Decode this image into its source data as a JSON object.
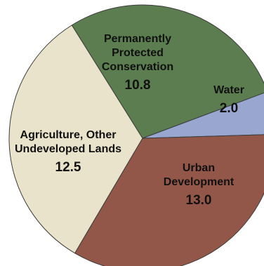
{
  "chart_data": {
    "type": "pie",
    "title": "",
    "slices": [
      {
        "label": [
          "Permanently",
          "Protected",
          "Conservation"
        ],
        "value": 10.8,
        "value_text": "10.8",
        "color": "#5c7d4f"
      },
      {
        "label": [
          "Water"
        ],
        "value": 2.0,
        "value_text": "2.0",
        "color": "#98a6d0"
      },
      {
        "label": [
          "Urban",
          "Development"
        ],
        "value": 13.0,
        "value_text": "13.0",
        "color": "#925748"
      },
      {
        "label": [
          "Agriculture, Other",
          "Undeveloped Lands"
        ],
        "value": 12.5,
        "value_text": "12.5",
        "color": "#e8e3ca"
      }
    ],
    "legend": "none"
  }
}
